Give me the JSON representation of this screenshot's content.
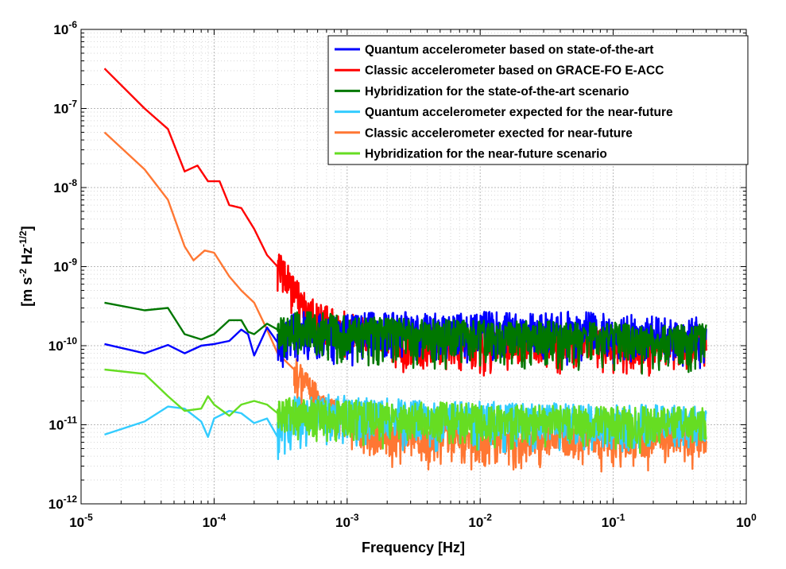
{
  "chart_data": {
    "type": "line",
    "title": "",
    "xlabel": "Frequency  [Hz]",
    "ylabel": "[m s^-2 Hz^-1/2]",
    "ylabel_parts": {
      "a": "[m s",
      "b": "-2",
      "c": " Hz",
      "d": "-1/2",
      "e": "]"
    },
    "x_scale": "log",
    "y_scale": "log",
    "xlim": [
      1e-05,
      1
    ],
    "ylim": [
      1e-12,
      1e-06
    ],
    "grid": true,
    "legend_position": "top-right",
    "x_ticks": [
      {
        "base": "10",
        "exp": "-5"
      },
      {
        "base": "10",
        "exp": "-4"
      },
      {
        "base": "10",
        "exp": "-3"
      },
      {
        "base": "10",
        "exp": "-2"
      },
      {
        "base": "10",
        "exp": "-1"
      },
      {
        "base": "10",
        "exp": "0"
      }
    ],
    "y_ticks": [
      {
        "base": "10",
        "exp": "-12"
      },
      {
        "base": "10",
        "exp": "-11"
      },
      {
        "base": "10",
        "exp": "-10"
      },
      {
        "base": "10",
        "exp": "-9"
      },
      {
        "base": "10",
        "exp": "-8"
      },
      {
        "base": "10",
        "exp": "-7"
      },
      {
        "base": "10",
        "exp": "-6"
      }
    ],
    "series": [
      {
        "name": "Quantum accelerometer based on state-of-the-art",
        "color": "#0000ff",
        "x": [
          1.5e-05,
          3e-05,
          4.5e-05,
          6e-05,
          8e-05,
          0.0001,
          0.00013,
          0.00016,
          0.00018,
          0.0002,
          0.00025,
          0.0003,
          0.0004,
          0.0005,
          0.0007,
          0.001,
          0.002,
          0.005,
          0.01,
          0.02,
          0.05,
          0.1,
          0.2,
          0.5
        ],
        "y": [
          1.05e-10,
          8e-11,
          1.02e-10,
          8e-11,
          1e-10,
          1.05e-10,
          1.15e-10,
          1.6e-10,
          1.4e-10,
          7.5e-11,
          1.7e-10,
          1.1e-10,
          1.5e-10,
          1.6e-10,
          1.4e-10,
          1.5e-10,
          1.6e-10,
          1.5e-10,
          1.6e-10,
          1.5e-10,
          1.6e-10,
          1.5e-10,
          1.4e-10,
          1.4e-10
        ],
        "noise_from": 0.0003,
        "noise_up": 1.7,
        "noise_down": 0.35
      },
      {
        "name": "Classic accelerometer based on GRACE-FO E-ACC",
        "color": "#ff0000",
        "x": [
          1.5e-05,
          3e-05,
          4.5e-05,
          6e-05,
          7.5e-05,
          9e-05,
          0.00011,
          0.00013,
          0.00016,
          0.0002,
          0.00025,
          0.0003,
          0.0004,
          0.0005,
          0.0006,
          0.0008,
          0.001,
          0.002,
          0.005,
          0.01,
          0.02,
          0.05,
          0.1,
          0.2,
          0.5
        ],
        "y": [
          3.2e-07,
          1e-07,
          5.5e-08,
          1.6e-08,
          1.9e-08,
          1.2e-08,
          1.2e-08,
          6e-09,
          5.5e-09,
          3e-09,
          1.4e-09,
          1e-09,
          5e-10,
          3e-10,
          2.2e-10,
          1.8e-10,
          1.7e-10,
          1.2e-10,
          1.05e-10,
          1e-10,
          1e-10,
          1.05e-10,
          1.05e-10,
          1e-10,
          1e-10
        ],
        "noise_from": 0.0003,
        "noise_up": 1.6,
        "noise_down": 0.38
      },
      {
        "name": "Hybridization for the state-of-the-art scenario",
        "color": "#007700",
        "x": [
          1.5e-05,
          3e-05,
          4.5e-05,
          6e-05,
          8e-05,
          0.0001,
          0.00013,
          0.00016,
          0.00018,
          0.0002,
          0.00025,
          0.0003,
          0.0005,
          0.0007,
          0.001,
          0.002,
          0.005,
          0.01,
          0.02,
          0.05,
          0.1,
          0.2,
          0.5
        ],
        "y": [
          3.5e-10,
          2.8e-10,
          3e-10,
          1.4e-10,
          1.2e-10,
          1.4e-10,
          2.1e-10,
          2.1e-10,
          1.5e-10,
          1.4e-10,
          1.9e-10,
          1.6e-10,
          1.7e-10,
          1.6e-10,
          1.5e-10,
          1.4e-10,
          1.35e-10,
          1.3e-10,
          1.3e-10,
          1.25e-10,
          1.25e-10,
          1.2e-10,
          1.2e-10
        ],
        "noise_from": 0.0003,
        "noise_up": 1.6,
        "noise_down": 0.33
      },
      {
        "name": "Quantum accelerometer expected for the near-future",
        "color": "#33ccff",
        "x": [
          1.5e-05,
          3e-05,
          4.5e-05,
          6e-05,
          8e-05,
          9e-05,
          0.0001,
          0.00013,
          0.00016,
          0.0002,
          0.00025,
          0.0003,
          0.0004,
          0.0005,
          0.0007,
          0.001,
          0.002,
          0.005,
          0.01,
          0.02,
          0.05,
          0.1,
          0.2,
          0.5
        ],
        "y": [
          7.5e-12,
          1.1e-11,
          1.7e-11,
          1.6e-11,
          1.1e-11,
          7e-12,
          1.2e-11,
          1.5e-11,
          1.4e-11,
          1.05e-11,
          1.2e-11,
          7e-12,
          1.3e-11,
          1.2e-11,
          1.4e-11,
          1.3e-11,
          1.2e-11,
          1.1e-11,
          1.1e-11,
          1.05e-11,
          1.05e-11,
          1e-11,
          1e-11,
          1e-11
        ],
        "noise_from": 0.0003,
        "noise_up": 1.8,
        "noise_down": 0.38
      },
      {
        "name": "Classic accelerometer exected for near-future",
        "color": "#ff7733",
        "x": [
          1.5e-05,
          3e-05,
          4.5e-05,
          6e-05,
          7e-05,
          8.5e-05,
          0.0001,
          0.00013,
          0.00016,
          0.0002,
          0.00025,
          0.0003,
          0.0004,
          0.0005,
          0.0006,
          0.0007,
          0.001,
          0.002,
          0.005,
          0.01,
          0.02,
          0.05,
          0.1,
          0.2,
          0.5
        ],
        "y": [
          5e-08,
          1.7e-08,
          7e-09,
          1.8e-09,
          1.2e-09,
          1.6e-09,
          1.5e-09,
          7.5e-10,
          5e-10,
          3.5e-10,
          1.6e-10,
          8e-11,
          5e-11,
          3e-11,
          2.1e-11,
          1.5e-11,
          1.2e-11,
          8e-12,
          7e-12,
          7e-12,
          7e-12,
          7e-12,
          7e-12,
          7e-12,
          7e-12
        ],
        "noise_from": 0.0004,
        "noise_up": 1.5,
        "noise_down": 0.35
      },
      {
        "name": "Hybridization for the near-future scenario",
        "color": "#66dd22",
        "x": [
          1.5e-05,
          3e-05,
          4.5e-05,
          6e-05,
          8e-05,
          9e-05,
          0.0001,
          0.00013,
          0.00016,
          0.0002,
          0.00025,
          0.0003,
          0.0005,
          0.001,
          0.002,
          0.005,
          0.01,
          0.02,
          0.05,
          0.1,
          0.2,
          0.5
        ],
        "y": [
          5e-11,
          4.4e-11,
          2.3e-11,
          1.5e-11,
          1.6e-11,
          2.3e-11,
          1.8e-11,
          1.3e-11,
          1.8e-11,
          2e-11,
          1.8e-11,
          1.4e-11,
          1.3e-11,
          1.3e-11,
          1.2e-11,
          1.2e-11,
          1.15e-11,
          1.1e-11,
          1.1e-11,
          1.05e-11,
          1.05e-11,
          1.05e-11
        ],
        "noise_from": 0.0003,
        "noise_up": 1.6,
        "noise_down": 0.4
      }
    ]
  }
}
